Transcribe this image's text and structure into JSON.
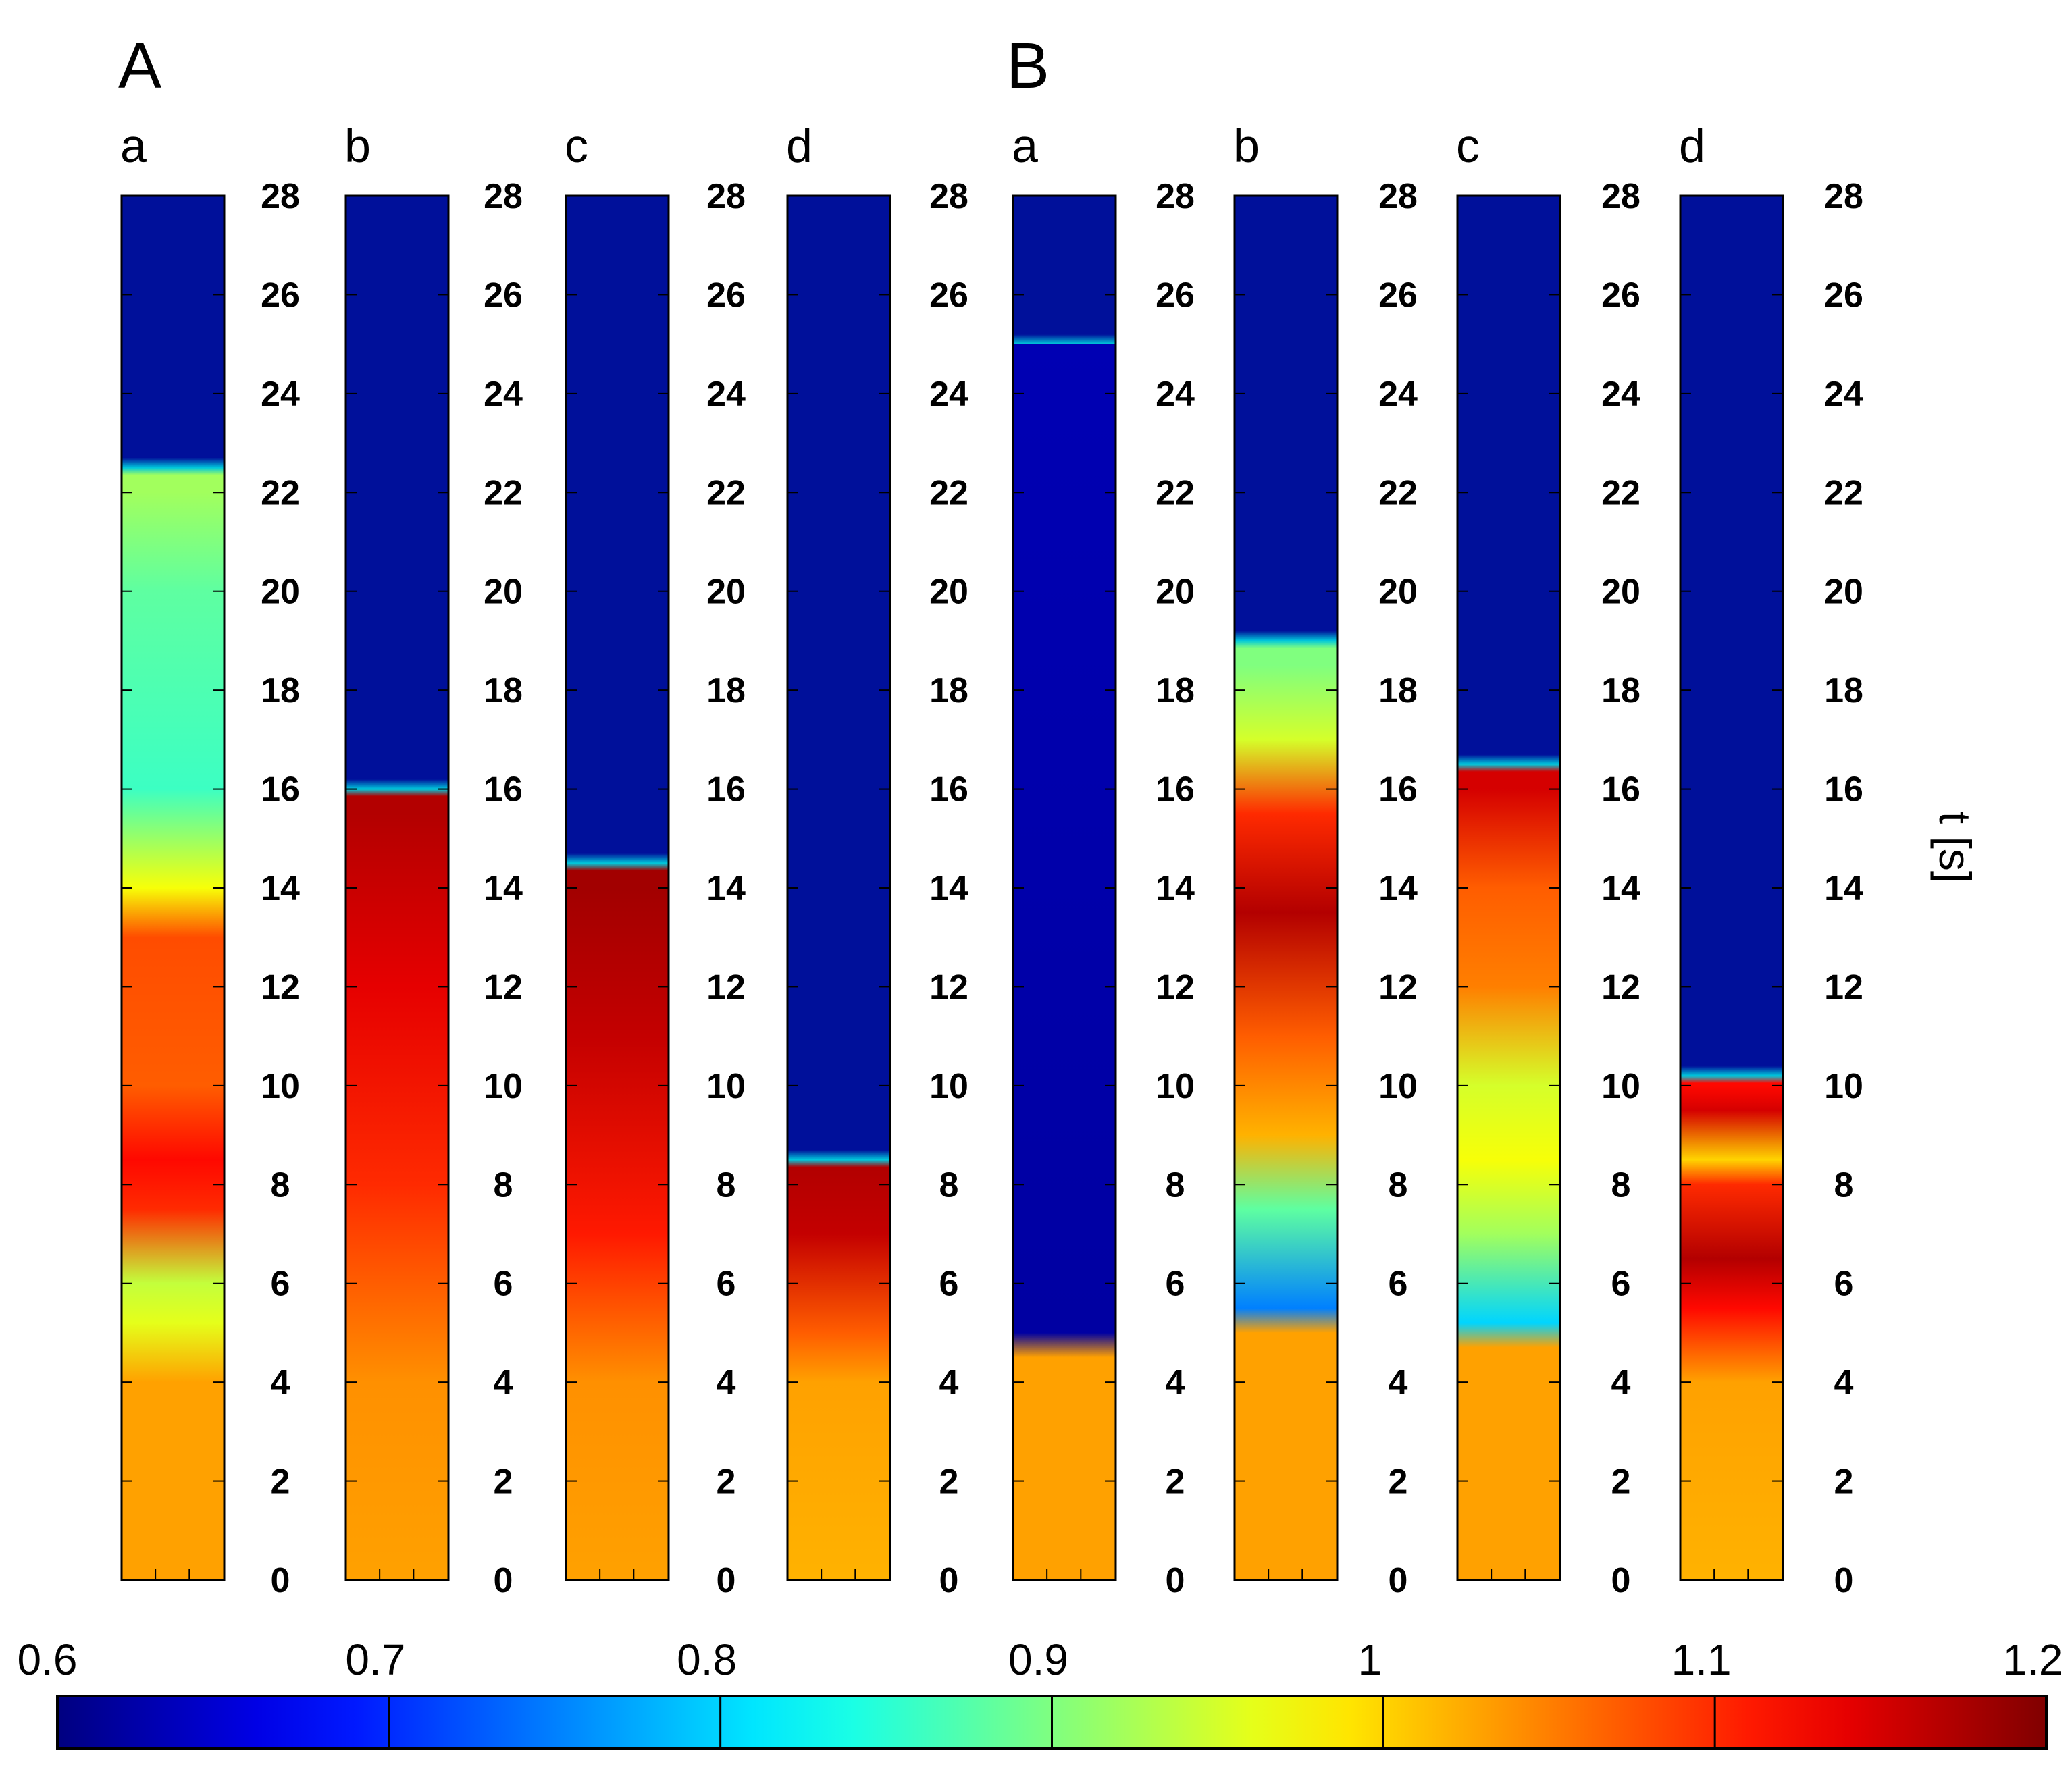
{
  "chart_data": {
    "type": "heatmap",
    "title": "",
    "ylabel": "t [s]",
    "ylim": [
      0,
      28
    ],
    "yticks": [
      "0",
      "2",
      "4",
      "6",
      "8",
      "10",
      "12",
      "14",
      "16",
      "18",
      "20",
      "22",
      "24",
      "26",
      "28"
    ],
    "groups": [
      {
        "label": "A",
        "panels": [
          {
            "label": "a",
            "front_time": 22.5,
            "profile": [
              {
                "t": 0,
                "v": 1.03
              },
              {
                "t": 4,
                "v": 1.03
              },
              {
                "t": 5.2,
                "v": 0.96
              },
              {
                "t": 6,
                "v": 0.94
              },
              {
                "t": 7.5,
                "v": 1.1
              },
              {
                "t": 8.5,
                "v": 1.12
              },
              {
                "t": 10,
                "v": 1.07
              },
              {
                "t": 13,
                "v": 1.08
              },
              {
                "t": 14,
                "v": 0.97
              },
              {
                "t": 16,
                "v": 0.86
              },
              {
                "t": 20,
                "v": 0.88
              },
              {
                "t": 22,
                "v": 0.92
              }
            ]
          },
          {
            "label": "b",
            "front_time": 16,
            "profile": [
              {
                "t": 0,
                "v": 1.03
              },
              {
                "t": 4,
                "v": 1.04
              },
              {
                "t": 8,
                "v": 1.1
              },
              {
                "t": 12,
                "v": 1.14
              },
              {
                "t": 15.5,
                "v": 1.17
              }
            ]
          },
          {
            "label": "c",
            "front_time": 14.5,
            "profile": [
              {
                "t": 0,
                "v": 1.03
              },
              {
                "t": 4,
                "v": 1.04
              },
              {
                "t": 7,
                "v": 1.11
              },
              {
                "t": 11,
                "v": 1.16
              },
              {
                "t": 14,
                "v": 1.18
              }
            ]
          },
          {
            "label": "d",
            "front_time": 8.5,
            "profile": [
              {
                "t": 0,
                "v": 1.02
              },
              {
                "t": 4,
                "v": 1.03
              },
              {
                "t": 5,
                "v": 1.07
              },
              {
                "t": 7,
                "v": 1.16
              },
              {
                "t": 8.3,
                "v": 1.17
              }
            ]
          }
        ]
      },
      {
        "label": "B",
        "panels": [
          {
            "label": "a",
            "front_time": 25,
            "profile": [
              {
                "t": 0,
                "v": 1.03
              },
              {
                "t": 4.5,
                "v": 1.03
              },
              {
                "t": 5,
                "v": 0.62
              },
              {
                "t": 25,
                "v": 0.63
              }
            ]
          },
          {
            "label": "b",
            "front_time": 19,
            "profile": [
              {
                "t": 0,
                "v": 1.03
              },
              {
                "t": 5,
                "v": 1.03
              },
              {
                "t": 5.5,
                "v": 0.75
              },
              {
                "t": 7.5,
                "v": 0.88
              },
              {
                "t": 9,
                "v": 1.02
              },
              {
                "t": 11,
                "v": 1.07
              },
              {
                "t": 13.5,
                "v": 1.17
              },
              {
                "t": 15.5,
                "v": 1.1
              },
              {
                "t": 17,
                "v": 0.95
              },
              {
                "t": 18.5,
                "v": 0.9
              }
            ]
          },
          {
            "label": "c",
            "front_time": 16.5,
            "profile": [
              {
                "t": 0,
                "v": 1.03
              },
              {
                "t": 4.7,
                "v": 1.03
              },
              {
                "t": 5.2,
                "v": 0.8
              },
              {
                "t": 7,
                "v": 0.92
              },
              {
                "t": 8.5,
                "v": 0.97
              },
              {
                "t": 10,
                "v": 0.95
              },
              {
                "t": 12,
                "v": 1.05
              },
              {
                "t": 14,
                "v": 1.07
              },
              {
                "t": 16,
                "v": 1.15
              }
            ]
          },
          {
            "label": "d",
            "front_time": 10.2,
            "profile": [
              {
                "t": 0,
                "v": 1.02
              },
              {
                "t": 4,
                "v": 1.03
              },
              {
                "t": 5.5,
                "v": 1.12
              },
              {
                "t": 6.5,
                "v": 1.17
              },
              {
                "t": 8,
                "v": 1.1
              },
              {
                "t": 8.5,
                "v": 1.0
              },
              {
                "t": 9.5,
                "v": 1.15
              },
              {
                "t": 10,
                "v": 1.12
              }
            ]
          }
        ]
      }
    ],
    "colorbar": {
      "ticks": [
        "0.6",
        "0.7",
        "0.8",
        "0.9",
        "1",
        "1.1",
        "1.2"
      ],
      "min": 0.6,
      "max": 1.2,
      "colormap": "jet"
    },
    "empty_color": "#00109a"
  }
}
